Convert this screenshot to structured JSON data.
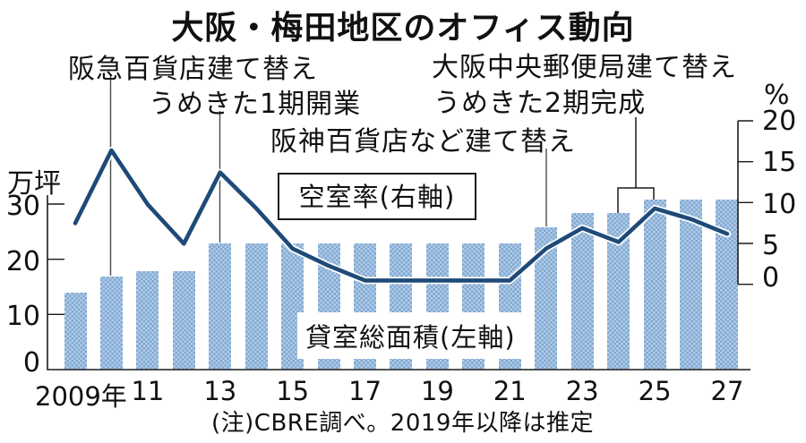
{
  "title": "大阪・梅田地区のオフィス動向",
  "annotations": {
    "hankyu": "阪急百貨店建て替え",
    "umekita1": "うめきた1期開業",
    "hanshin": "阪神百貨店など建て替え",
    "post_office": "大阪中央郵便局建て替え",
    "umekita2": "うめきた2期完成"
  },
  "labels": {
    "vacancy_line": "空室率(右軸)",
    "floor_bars": "貸室総面積(左軸)"
  },
  "axes": {
    "left": {
      "unit": "万坪",
      "ticks": [
        "30",
        "20",
        "10",
        "0"
      ]
    },
    "right": {
      "unit": "%",
      "ticks": [
        "20",
        "15",
        "10",
        "5",
        "0"
      ]
    },
    "x": {
      "labels": [
        "2009年",
        "11",
        "13",
        "15",
        "17",
        "19",
        "21",
        "23",
        "25",
        "27"
      ]
    }
  },
  "note": "(注)CBRE調べ。2019年以降は推定",
  "colors": {
    "bar_light": "#b3cbe6",
    "bar_dark": "#7fa9d3",
    "line": "#1e4a78",
    "line_casing": "#ffffff",
    "leader": "#4a4a4a",
    "axis": "#1a1a1a"
  },
  "chart_data": {
    "type": "bar+line combo",
    "title": "大阪・梅田地区のオフィス動向",
    "categories": [
      2009,
      2010,
      2011,
      2012,
      2013,
      2014,
      2015,
      2016,
      2017,
      2018,
      2019,
      2020,
      2021,
      2022,
      2023,
      2024,
      2025,
      2026,
      2027
    ],
    "series": [
      {
        "name": "貸室総面積(左軸)",
        "type": "bar",
        "axis": "left",
        "unit": "万坪",
        "values": [
          14,
          17,
          18,
          18,
          23,
          23,
          23,
          23,
          23,
          23,
          23,
          23,
          23,
          26,
          28.5,
          28.5,
          31,
          31,
          31
        ]
      },
      {
        "name": "空室率(右軸)",
        "type": "line",
        "axis": "right",
        "unit": "%",
        "values": [
          7.5,
          16.4,
          9.8,
          5.0,
          13.7,
          9.3,
          4.4,
          2.3,
          0.5,
          0.5,
          0.5,
          0.5,
          0.5,
          4.4,
          6.9,
          5.2,
          9.3,
          8.0,
          6.2
        ]
      }
    ],
    "left_axis": {
      "label": "万坪",
      "min": 0,
      "max": 30,
      "tick_step": 10
    },
    "right_axis": {
      "label": "%",
      "min": 0,
      "max": 20,
      "tick_step": 5
    },
    "x_tick_labels": [
      "2009年",
      "11",
      "13",
      "15",
      "17",
      "19",
      "21",
      "23",
      "25",
      "27"
    ],
    "event_annotations": [
      {
        "text": "阪急百貨店建て替え",
        "points_to_year": 2010
      },
      {
        "text": "うめきた1期開業",
        "points_to_year": 2013
      },
      {
        "text": "阪神百貨店など建て替え",
        "points_to_year": 2022
      },
      {
        "text": "大阪中央郵便局建て替え",
        "points_to_years": [
          2024,
          2025
        ]
      },
      {
        "text": "うめきた2期完成",
        "points_to_years": [
          2024,
          2025
        ]
      }
    ],
    "grid": false,
    "legend_position": "inline-labels",
    "note": "(注)CBRE調べ。2019年以降は推定"
  }
}
